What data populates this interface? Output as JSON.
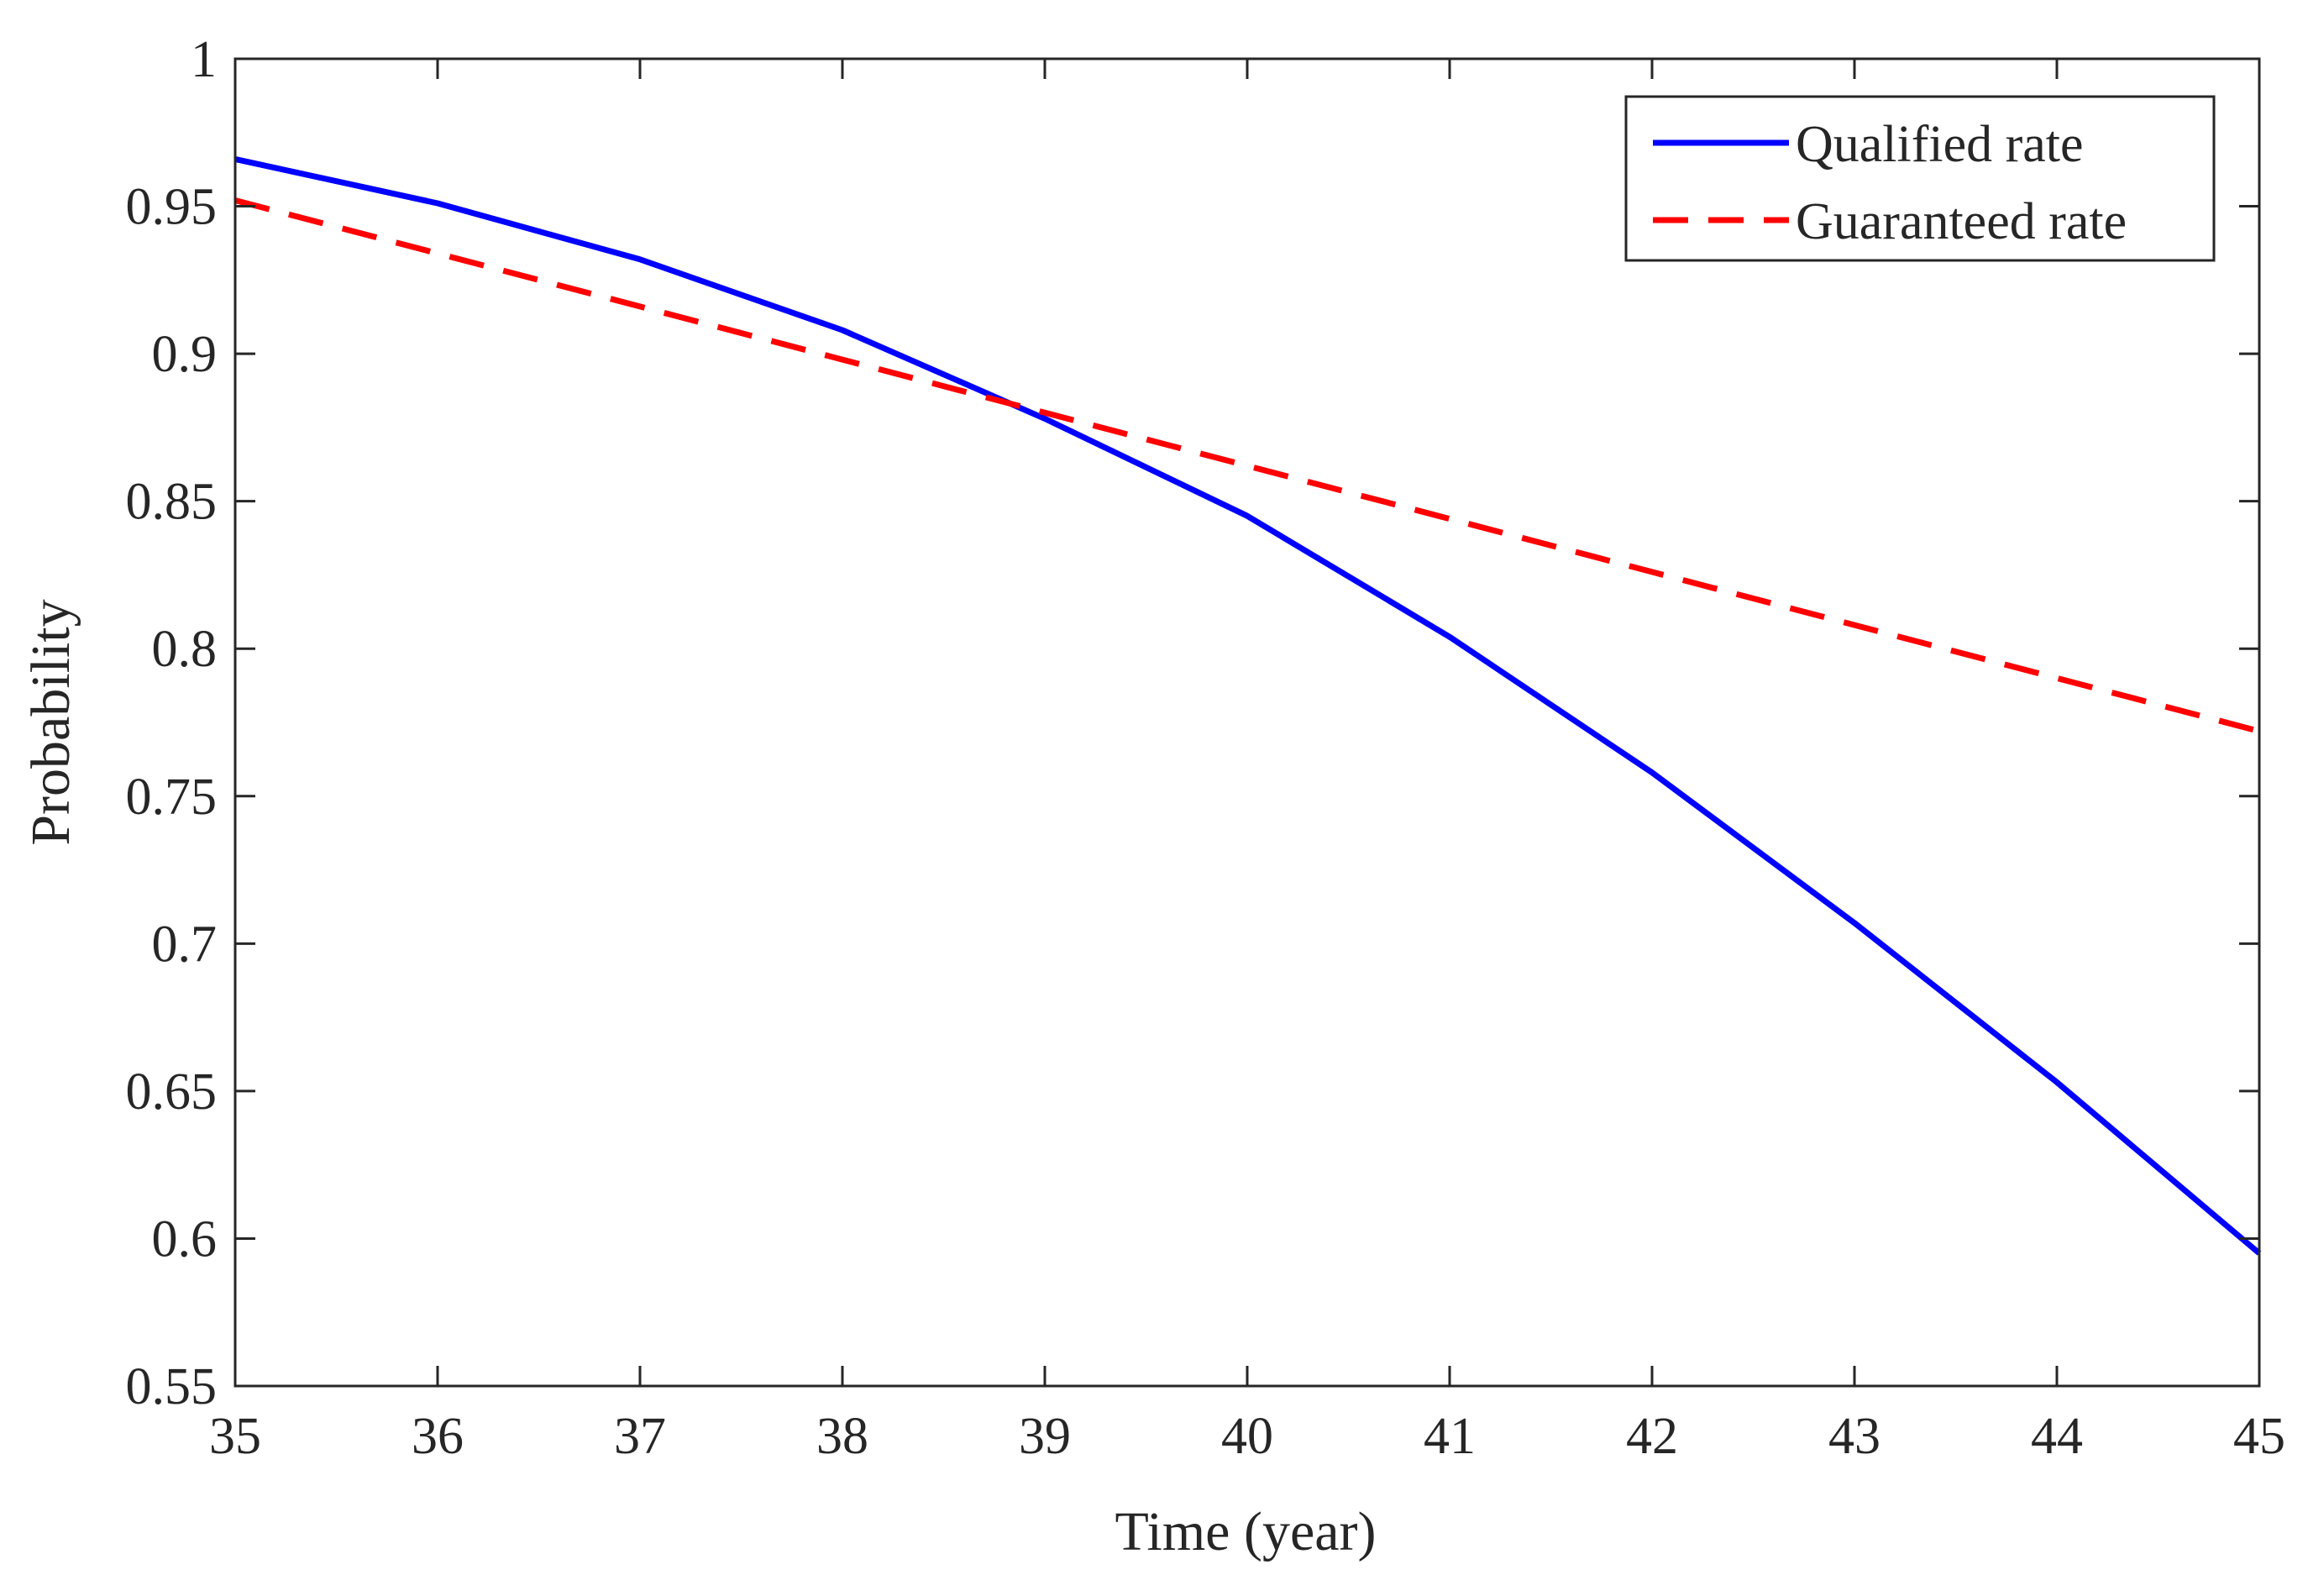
{
  "chart_data": {
    "type": "line",
    "title": "",
    "xlabel": "Time (year)",
    "ylabel": "Probability",
    "xlim": [
      35,
      45
    ],
    "ylim": [
      0.55,
      1
    ],
    "xticks": [
      35,
      36,
      37,
      38,
      39,
      40,
      41,
      42,
      43,
      44,
      45
    ],
    "yticks": [
      0.55,
      0.6,
      0.65,
      0.7,
      0.75,
      0.8,
      0.85,
      0.9,
      0.95,
      1
    ],
    "xtick_labels": [
      "35",
      "36",
      "37",
      "38",
      "39",
      "40",
      "41",
      "42",
      "43",
      "44",
      "45"
    ],
    "ytick_labels": [
      "0.55",
      "0.6",
      "0.65",
      "0.7",
      "0.75",
      "0.8",
      "0.85",
      "0.9",
      "0.95",
      "1"
    ],
    "grid": false,
    "legend_position": "top-right",
    "x": [
      35,
      36,
      37,
      38,
      39,
      40,
      41,
      42,
      43,
      44,
      45
    ],
    "series": [
      {
        "name": "Qualified rate",
        "color": "#0000FF",
        "style": "solid",
        "values": [
          0.966,
          0.951,
          0.932,
          0.908,
          0.878,
          0.845,
          0.804,
          0.758,
          0.707,
          0.653,
          0.595
        ]
      },
      {
        "name": "Guaranteed rate",
        "color": "#FF0000",
        "style": "dashed",
        "values": [
          0.952,
          0.934,
          0.916,
          0.898,
          0.88,
          0.862,
          0.844,
          0.826,
          0.808,
          0.79,
          0.772
        ]
      }
    ]
  }
}
